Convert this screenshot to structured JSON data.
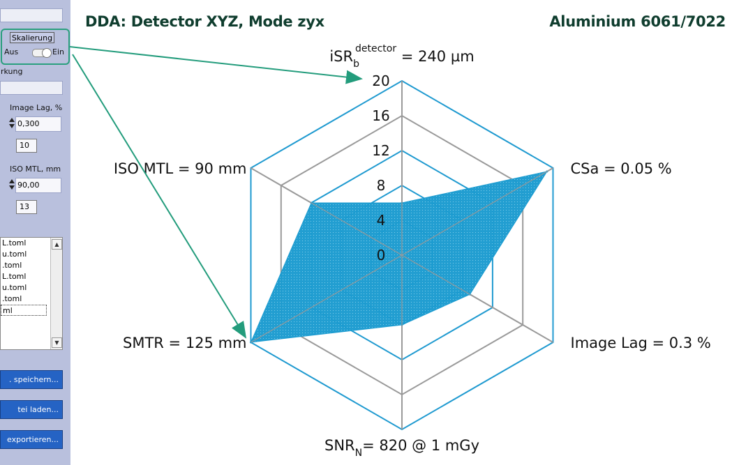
{
  "panel": {
    "scaling": {
      "title": "Skalierung",
      "off_label": "Aus",
      "on_label": "Ein",
      "state": "on"
    },
    "remark_label": "rkung",
    "image_lag": {
      "label": "Image Lag, %",
      "value": "0,300",
      "box": "10"
    },
    "iso_mtl": {
      "label": "ISO MTL, mm",
      "value": "90,00",
      "box": "13"
    },
    "files": [
      "L.toml",
      "u.toml",
      ".toml",
      "L.toml",
      "u.toml",
      ".toml",
      "ml"
    ],
    "buttons": [
      ". speichern...",
      "tei laden...",
      "exportieren..."
    ]
  },
  "header": {
    "title": "DDA: Detector XYZ, Mode zyx",
    "material": "Aluminium 6061/7022"
  },
  "colors": {
    "fill": "#1b9bd0",
    "outer_ring": "#1f9ad0",
    "mid_ring": "#9a9a9a",
    "spoke": "#9a9a9a",
    "annotation": "#239c7c"
  },
  "chart_data": {
    "type": "radar",
    "r_range": [
      0,
      20
    ],
    "ticks": [
      "0",
      "4",
      "8",
      "12",
      "16",
      "20"
    ],
    "axes": [
      {
        "main": "iSR",
        "sub": "b",
        "sup": "detector",
        "rest": " = 240 µm"
      },
      {
        "main": "CSa = 0.05 %",
        "sub": "",
        "sup": "",
        "rest": ""
      },
      {
        "main": "Image Lag = 0.3 %",
        "sub": "",
        "sup": "",
        "rest": ""
      },
      {
        "main": "SNR",
        "sub": "N",
        "sup": "",
        "rest": "= 820 @ 1 mGy"
      },
      {
        "main": "SMTR = 125 mm",
        "sub": "",
        "sup": "",
        "rest": ""
      },
      {
        "main": "ISO MTL = 90 mm",
        "sub": "",
        "sup": "",
        "rest": ""
      }
    ],
    "values": [
      6.0,
      19.2,
      9.0,
      8.0,
      20.0,
      12.0
    ],
    "grid": true
  }
}
